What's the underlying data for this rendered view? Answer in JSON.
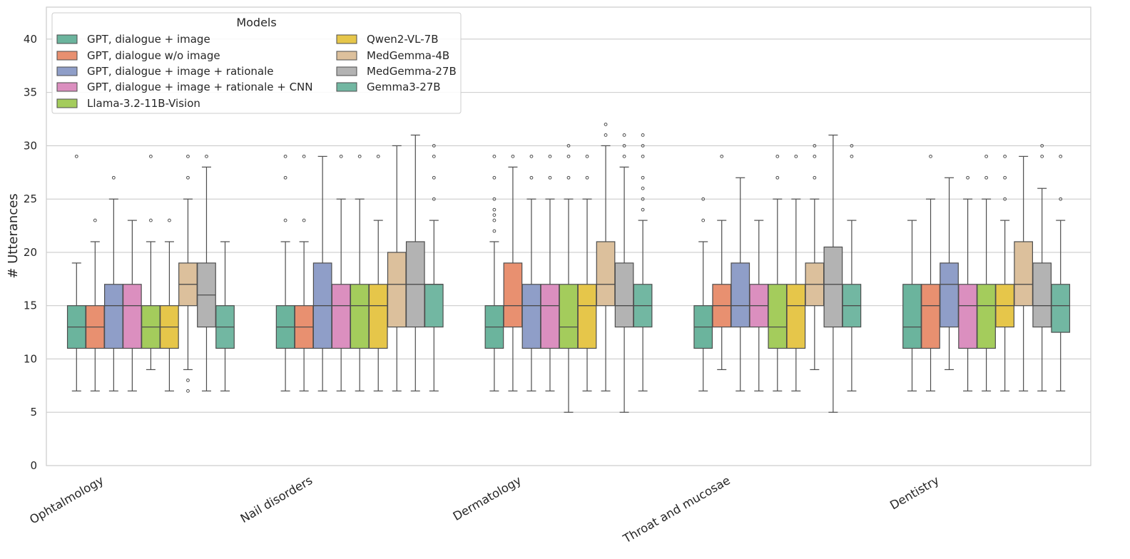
{
  "chart_data": {
    "type": "boxplot",
    "title": "",
    "xlabel": "",
    "ylabel": "# Utterances",
    "ylim": [
      0,
      43
    ],
    "yticks": [
      0,
      5,
      10,
      15,
      20,
      25,
      30,
      35,
      40
    ],
    "grid": "horizontal",
    "legend": {
      "title": "Models",
      "placement": "top-left",
      "columns": 2
    },
    "categories": [
      "Ophtalmology",
      "Nail disorders",
      "Dermatology",
      "Throat and mucosae",
      "Dentistry"
    ],
    "series": [
      {
        "name": "GPT, dialogue + image",
        "color": "#6bb49d",
        "boxes": [
          {
            "q1": 11,
            "median": 13,
            "q3": 15,
            "whislo": 7,
            "whishi": 19,
            "fliers": [
              29
            ]
          },
          {
            "q1": 11,
            "median": 13,
            "q3": 15,
            "whislo": 7,
            "whishi": 21,
            "fliers": [
              23,
              27,
              29
            ]
          },
          {
            "q1": 11,
            "median": 13,
            "q3": 15,
            "whislo": 7,
            "whishi": 21,
            "fliers": [
              22,
              23,
              23.5,
              24,
              25,
              27,
              29
            ]
          },
          {
            "q1": 11,
            "median": 13,
            "q3": 15,
            "whislo": 7,
            "whishi": 21,
            "fliers": [
              23,
              25
            ]
          },
          {
            "q1": 11,
            "median": 13,
            "q3": 17,
            "whislo": 7,
            "whishi": 23,
            "fliers": []
          }
        ]
      },
      {
        "name": "GPT, dialogue w/o image",
        "color": "#e89070",
        "boxes": [
          {
            "q1": 11,
            "median": 13,
            "q3": 15,
            "whislo": 7,
            "whishi": 21,
            "fliers": [
              23
            ]
          },
          {
            "q1": 11,
            "median": 13,
            "q3": 15,
            "whislo": 7,
            "whishi": 21,
            "fliers": [
              23,
              29
            ]
          },
          {
            "q1": 13,
            "median": 15,
            "q3": 19,
            "whislo": 7,
            "whishi": 28,
            "fliers": [
              29
            ]
          },
          {
            "q1": 13,
            "median": 15,
            "q3": 17,
            "whislo": 9,
            "whishi": 23,
            "fliers": [
              29
            ]
          },
          {
            "q1": 11,
            "median": 15,
            "q3": 17,
            "whislo": 7,
            "whishi": 25,
            "fliers": [
              29
            ]
          }
        ]
      },
      {
        "name": "GPT, dialogue + image + rationale",
        "color": "#8f9ec8",
        "boxes": [
          {
            "q1": 11,
            "median": 15,
            "q3": 17,
            "whislo": 7,
            "whishi": 25,
            "fliers": [
              27
            ]
          },
          {
            "q1": 11,
            "median": 15,
            "q3": 19,
            "whislo": 7,
            "whishi": 29,
            "fliers": []
          },
          {
            "q1": 11,
            "median": 15,
            "q3": 17,
            "whislo": 7,
            "whishi": 25,
            "fliers": [
              27,
              29
            ]
          },
          {
            "q1": 13,
            "median": 15,
            "q3": 19,
            "whislo": 7,
            "whishi": 27,
            "fliers": []
          },
          {
            "q1": 13,
            "median": 17,
            "q3": 19,
            "whislo": 9,
            "whishi": 27,
            "fliers": []
          }
        ]
      },
      {
        "name": "GPT, dialogue + image + rationale + CNN",
        "color": "#db8fbf",
        "boxes": [
          {
            "q1": 11,
            "median": 15,
            "q3": 17,
            "whislo": 7,
            "whishi": 23,
            "fliers": []
          },
          {
            "q1": 11,
            "median": 15,
            "q3": 17,
            "whislo": 7,
            "whishi": 25,
            "fliers": [
              29
            ]
          },
          {
            "q1": 11,
            "median": 15,
            "q3": 17,
            "whislo": 7,
            "whishi": 25,
            "fliers": [
              27,
              29
            ]
          },
          {
            "q1": 13,
            "median": 15,
            "q3": 17,
            "whislo": 7,
            "whishi": 23,
            "fliers": []
          },
          {
            "q1": 11,
            "median": 15,
            "q3": 17,
            "whislo": 7,
            "whishi": 25,
            "fliers": [
              27
            ]
          }
        ]
      },
      {
        "name": "Llama-3.2-11B-Vision",
        "color": "#a4cc5c",
        "boxes": [
          {
            "q1": 11,
            "median": 13,
            "q3": 15,
            "whislo": 9,
            "whishi": 21,
            "fliers": [
              23,
              29
            ]
          },
          {
            "q1": 11,
            "median": 15,
            "q3": 17,
            "whislo": 7,
            "whishi": 25,
            "fliers": [
              29
            ]
          },
          {
            "q1": 11,
            "median": 13,
            "q3": 17,
            "whislo": 5,
            "whishi": 25,
            "fliers": [
              27,
              29,
              30
            ]
          },
          {
            "q1": 11,
            "median": 13,
            "q3": 17,
            "whislo": 7,
            "whishi": 25,
            "fliers": [
              27,
              29
            ]
          },
          {
            "q1": 11,
            "median": 15,
            "q3": 17,
            "whislo": 7,
            "whishi": 25,
            "fliers": [
              27,
              29
            ]
          }
        ]
      },
      {
        "name": "Qwen2-VL-7B",
        "color": "#e6c64a",
        "boxes": [
          {
            "q1": 11,
            "median": 13,
            "q3": 15,
            "whislo": 7,
            "whishi": 21,
            "fliers": [
              23
            ]
          },
          {
            "q1": 11,
            "median": 15,
            "q3": 17,
            "whislo": 7,
            "whishi": 23,
            "fliers": [
              29
            ]
          },
          {
            "q1": 11,
            "median": 15,
            "q3": 17,
            "whislo": 7,
            "whishi": 25,
            "fliers": [
              27,
              29
            ]
          },
          {
            "q1": 11,
            "median": 15,
            "q3": 17,
            "whislo": 7,
            "whishi": 25,
            "fliers": [
              29
            ]
          },
          {
            "q1": 13,
            "median": 15,
            "q3": 17,
            "whislo": 7,
            "whishi": 23,
            "fliers": [
              25,
              27,
              29
            ]
          }
        ]
      },
      {
        "name": "MedGemma-4B",
        "color": "#dcc09c",
        "boxes": [
          {
            "q1": 15,
            "median": 17,
            "q3": 19,
            "whislo": 9,
            "whishi": 25,
            "fliers": [
              7,
              8,
              27,
              29
            ]
          },
          {
            "q1": 13,
            "median": 17,
            "q3": 20,
            "whislo": 7,
            "whishi": 30,
            "fliers": []
          },
          {
            "q1": 15,
            "median": 17,
            "q3": 21,
            "whislo": 7,
            "whishi": 30,
            "fliers": [
              31,
              32
            ]
          },
          {
            "q1": 15,
            "median": 17,
            "q3": 19,
            "whislo": 9,
            "whishi": 25,
            "fliers": [
              27,
              29,
              30
            ]
          },
          {
            "q1": 15,
            "median": 17,
            "q3": 21,
            "whislo": 7,
            "whishi": 29,
            "fliers": []
          }
        ]
      },
      {
        "name": "MedGemma-27B",
        "color": "#b3b3b3",
        "boxes": [
          {
            "q1": 13,
            "median": 16,
            "q3": 19,
            "whislo": 7,
            "whishi": 28,
            "fliers": [
              29
            ]
          },
          {
            "q1": 13,
            "median": 17,
            "q3": 21,
            "whislo": 7,
            "whishi": 31,
            "fliers": []
          },
          {
            "q1": 13,
            "median": 15,
            "q3": 19,
            "whislo": 5,
            "whishi": 28,
            "fliers": [
              29,
              30,
              31
            ]
          },
          {
            "q1": 13,
            "median": 17,
            "q3": 20.5,
            "whislo": 5,
            "whishi": 31,
            "fliers": []
          },
          {
            "q1": 13,
            "median": 15,
            "q3": 19,
            "whislo": 7,
            "whishi": 26,
            "fliers": [
              29,
              30
            ]
          }
        ]
      },
      {
        "name": "Gemma3-27B",
        "color": "#72b7a2",
        "boxes": [
          {
            "q1": 11,
            "median": 13,
            "q3": 15,
            "whislo": 7,
            "whishi": 21,
            "fliers": []
          },
          {
            "q1": 13,
            "median": 17,
            "q3": 17,
            "whislo": 7,
            "whishi": 23,
            "fliers": [
              25,
              27,
              29,
              30
            ]
          },
          {
            "q1": 13,
            "median": 15,
            "q3": 17,
            "whislo": 7,
            "whishi": 23,
            "fliers": [
              24,
              25,
              26,
              27,
              29,
              30,
              31
            ]
          },
          {
            "q1": 13,
            "median": 15,
            "q3": 17,
            "whislo": 7,
            "whishi": 23,
            "fliers": [
              29,
              30
            ]
          },
          {
            "q1": 12.5,
            "median": 15,
            "q3": 17,
            "whislo": 7,
            "whishi": 23,
            "fliers": [
              25,
              29
            ]
          }
        ]
      }
    ]
  }
}
